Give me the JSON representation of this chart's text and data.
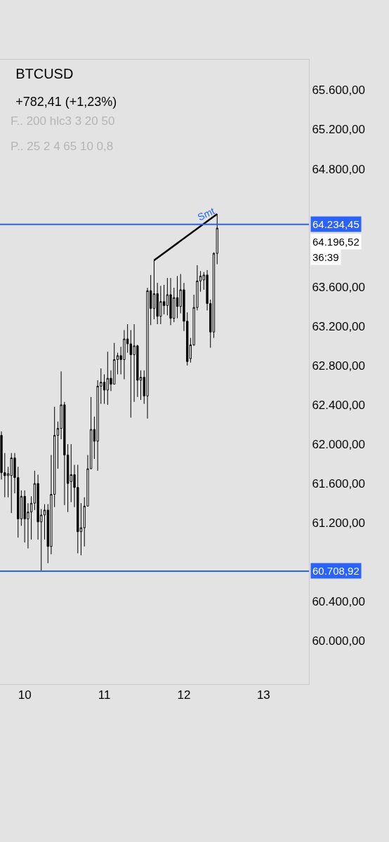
{
  "chart_data": {
    "type": "candlestick",
    "title": "BTCUSD",
    "subtitle": "+782,41 (+1,23%)",
    "x": [
      9.708,
      9.75,
      9.792,
      9.833,
      9.875,
      9.917,
      9.958,
      10.0,
      10.042,
      10.083,
      10.125,
      10.167,
      10.208,
      10.25,
      10.292,
      10.333,
      10.375,
      10.417,
      10.458,
      10.5,
      10.542,
      10.583,
      10.625,
      10.667,
      10.708,
      10.75,
      10.792,
      10.833,
      10.875,
      10.917,
      10.958,
      11.0,
      11.042,
      11.083,
      11.125,
      11.167,
      11.208,
      11.25,
      11.292,
      11.333,
      11.375,
      11.417,
      11.458,
      11.5,
      11.542,
      11.583,
      11.625,
      11.667,
      11.708,
      11.75,
      11.792,
      11.833,
      11.875,
      11.917,
      11.958,
      12.0,
      12.042,
      12.083,
      12.125,
      12.167,
      12.208,
      12.25,
      12.292,
      12.333,
      12.375,
      12.417
    ],
    "ohlc": [
      [
        62090,
        62130,
        61640,
        61710
      ],
      [
        61710,
        61910,
        61460,
        61680
      ],
      [
        61680,
        61770,
        61460,
        61700
      ],
      [
        61680,
        61910,
        61300,
        61860
      ],
      [
        61860,
        61910,
        61500,
        61660
      ],
      [
        61660,
        61770,
        61050,
        61240
      ],
      [
        61240,
        61530,
        61170,
        61470
      ],
      [
        61470,
        61530,
        61000,
        61240
      ],
      [
        61240,
        61400,
        60940,
        61310
      ],
      [
        61310,
        61470,
        61030,
        61400
      ],
      [
        61400,
        61730,
        61330,
        61600
      ],
      [
        61600,
        61690,
        61030,
        61210
      ],
      [
        61210,
        61340,
        60709,
        61280
      ],
      [
        61280,
        61390,
        61030,
        61330
      ],
      [
        61330,
        61390,
        60790,
        60960
      ],
      [
        60960,
        61890,
        60880,
        61490
      ],
      [
        61490,
        62380,
        61360,
        62090
      ],
      [
        62090,
        62230,
        61750,
        62160
      ],
      [
        62160,
        62740,
        62050,
        62400
      ],
      [
        62400,
        62430,
        61380,
        61890
      ],
      [
        61890,
        62000,
        61310,
        61600
      ],
      [
        61620,
        62000,
        61410,
        61690
      ],
      [
        61690,
        61790,
        61360,
        61560
      ],
      [
        61560,
        61790,
        60890,
        61110
      ],
      [
        61110,
        61400,
        60870,
        61150
      ],
      [
        61150,
        61460,
        60960,
        61370
      ],
      [
        61370,
        61890,
        61370,
        61750
      ],
      [
        61750,
        62480,
        61750,
        62150
      ],
      [
        62150,
        62280,
        61850,
        62030
      ],
      [
        62030,
        62650,
        61730,
        62590
      ],
      [
        62590,
        62770,
        62410,
        62630
      ],
      [
        62630,
        62710,
        62410,
        62550
      ],
      [
        62550,
        62940,
        62400,
        62670
      ],
      [
        62670,
        62750,
        62540,
        62610
      ],
      [
        62610,
        63030,
        62610,
        62860
      ],
      [
        62860,
        62930,
        62710,
        62900
      ],
      [
        62900,
        62990,
        62710,
        62860
      ],
      [
        62860,
        63160,
        62660,
        63070
      ],
      [
        63070,
        63220,
        62930,
        63020
      ],
      [
        63020,
        63160,
        62270,
        62910
      ],
      [
        62910,
        63220,
        62430,
        63000
      ],
      [
        63000,
        63010,
        62480,
        62650
      ],
      [
        62650,
        62750,
        62450,
        62680
      ],
      [
        62680,
        62750,
        62410,
        62490
      ],
      [
        62490,
        63590,
        62260,
        63560
      ],
      [
        63560,
        63720,
        63210,
        63380
      ],
      [
        63380,
        63870,
        63270,
        63530
      ],
      [
        63530,
        63640,
        63220,
        63300
      ],
      [
        63300,
        63610,
        63220,
        63450
      ],
      [
        63450,
        63620,
        63320,
        63410
      ],
      [
        63410,
        63690,
        63310,
        63520
      ],
      [
        63520,
        63690,
        63210,
        63280
      ],
      [
        63280,
        63590,
        63240,
        63490
      ],
      [
        63490,
        63710,
        63280,
        63400
      ],
      [
        63400,
        63730,
        63330,
        63570
      ],
      [
        63570,
        63640,
        63150,
        63250
      ],
      [
        63250,
        63340,
        62800,
        62840
      ],
      [
        62870,
        63080,
        62830,
        63010
      ],
      [
        63010,
        63520,
        63000,
        63390
      ],
      [
        63390,
        63820,
        63360,
        63660
      ],
      [
        63660,
        63760,
        63550,
        63710
      ],
      [
        63670,
        63750,
        63570,
        63720
      ],
      [
        63720,
        63770,
        63360,
        63430
      ],
      [
        63430,
        63470,
        62980,
        63140
      ],
      [
        63140,
        63950,
        63080,
        63940
      ],
      [
        63940,
        64340,
        63830,
        64196.52
      ]
    ],
    "series": [
      {
        "type": "line",
        "color": "#000000",
        "x": [
          11.625,
          12.417
        ],
        "values": [
          63870,
          64340
        ]
      }
    ],
    "xlim": [
      9.69,
      13.57
    ],
    "xticks": [
      10,
      11,
      12,
      13
    ],
    "ylim": [
      59560,
      65910
    ],
    "yticks": [
      {
        "value": 60000,
        "label": "60.000,00"
      },
      {
        "value": 60400,
        "label": "60.400,00"
      },
      {
        "value": 61200,
        "label": "61.200,00"
      },
      {
        "value": 61600,
        "label": "61.600,00"
      },
      {
        "value": 62000,
        "label": "62.000,00"
      },
      {
        "value": 62400,
        "label": "62.400,00"
      },
      {
        "value": 62800,
        "label": "62.800,00"
      },
      {
        "value": 63200,
        "label": "63.200,00"
      },
      {
        "value": 63600,
        "label": "63.600,00"
      },
      {
        "value": 64800,
        "label": "64.800,00"
      },
      {
        "value": 65200,
        "label": "65.200,00"
      },
      {
        "value": 65600,
        "label": "65.600,00"
      }
    ],
    "ref_lines": [
      {
        "axis": "y",
        "value": 64234.45,
        "label": "64.234,45",
        "color": "#2962ff"
      },
      {
        "axis": "y",
        "value": 60708.92,
        "label": "60.708,92",
        "color": "#2962ff"
      }
    ],
    "annotations": [
      "F.. 200 hlc3 3 20 50",
      "P.. 25 2 4 65 10 0,8",
      "Smt",
      "64.196,52",
      "36:39"
    ]
  }
}
